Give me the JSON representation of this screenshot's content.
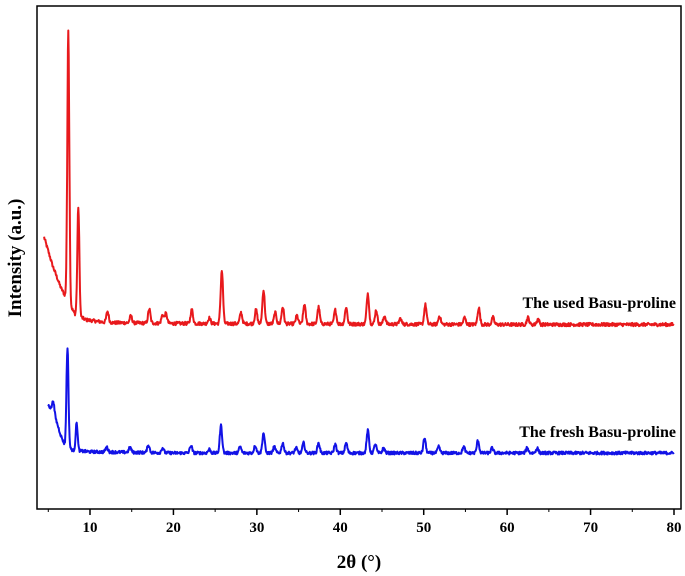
{
  "chart_data": {
    "type": "line",
    "xlabel": "2θ (°)",
    "ylabel": "Intensity (a.u.)",
    "xlim": [
      4,
      80
    ],
    "x_ticks": [
      10,
      20,
      30,
      40,
      50,
      60,
      70,
      80
    ],
    "y_ticks": false,
    "grid": false,
    "legend": "none",
    "series": [
      {
        "name": "The used Basu-proline",
        "color": "#e8191c",
        "baseline": 0.37,
        "background": [
          [
            4.5,
            0.68
          ],
          [
            5.5,
            0.58
          ],
          [
            6.5,
            0.5
          ],
          [
            7.2,
            0.46
          ],
          [
            8.2,
            0.405
          ],
          [
            9.5,
            0.385
          ],
          [
            12,
            0.375
          ],
          [
            20,
            0.372
          ],
          [
            40,
            0.37
          ],
          [
            60,
            0.368
          ],
          [
            80,
            0.368
          ]
        ],
        "peaks": [
          [
            7.4,
            0.97
          ],
          [
            8.6,
            0.39
          ],
          [
            12.1,
            0.04
          ],
          [
            14.9,
            0.025
          ],
          [
            17.1,
            0.05
          ],
          [
            18.7,
            0.03
          ],
          [
            19.1,
            0.035
          ],
          [
            22.2,
            0.05
          ],
          [
            24.3,
            0.02
          ],
          [
            25.8,
            0.19
          ],
          [
            28.1,
            0.04
          ],
          [
            29.9,
            0.05
          ],
          [
            30.8,
            0.12
          ],
          [
            32.2,
            0.04
          ],
          [
            33.1,
            0.06
          ],
          [
            34.8,
            0.03
          ],
          [
            35.7,
            0.07
          ],
          [
            37.4,
            0.06
          ],
          [
            39.4,
            0.05
          ],
          [
            40.7,
            0.06
          ],
          [
            43.3,
            0.11
          ],
          [
            44.3,
            0.05
          ],
          [
            45.3,
            0.03
          ],
          [
            47.2,
            0.02
          ],
          [
            50.2,
            0.07
          ],
          [
            51.9,
            0.03
          ],
          [
            54.9,
            0.025
          ],
          [
            56.6,
            0.06
          ],
          [
            58.3,
            0.025
          ],
          [
            62.5,
            0.025
          ],
          [
            63.7,
            0.02
          ]
        ]
      },
      {
        "name": "The fresh Basu-proline",
        "color": "#1212e6",
        "baseline": 0.0,
        "background": [
          [
            5.0,
            0.19
          ],
          [
            5.6,
            0.17
          ],
          [
            6.5,
            0.07
          ],
          [
            7.0,
            0.03
          ],
          [
            8.0,
            0.01
          ],
          [
            10,
            0.005
          ],
          [
            20,
            0.0
          ],
          [
            80,
            0.0
          ]
        ],
        "peaks": [
          [
            5.6,
            0.04
          ],
          [
            7.3,
            0.4
          ],
          [
            8.4,
            0.11
          ],
          [
            12.0,
            0.02
          ],
          [
            14.8,
            0.02
          ],
          [
            17.0,
            0.03
          ],
          [
            18.7,
            0.02
          ],
          [
            22.1,
            0.03
          ],
          [
            24.3,
            0.015
          ],
          [
            25.7,
            0.11
          ],
          [
            28.0,
            0.025
          ],
          [
            29.8,
            0.03
          ],
          [
            30.8,
            0.08
          ],
          [
            32.1,
            0.025
          ],
          [
            33.1,
            0.04
          ],
          [
            34.7,
            0.02
          ],
          [
            35.6,
            0.04
          ],
          [
            37.4,
            0.04
          ],
          [
            39.4,
            0.035
          ],
          [
            40.7,
            0.04
          ],
          [
            43.3,
            0.09
          ],
          [
            44.2,
            0.035
          ],
          [
            45.2,
            0.02
          ],
          [
            50.1,
            0.06
          ],
          [
            51.8,
            0.025
          ],
          [
            54.8,
            0.025
          ],
          [
            56.5,
            0.05
          ],
          [
            58.2,
            0.02
          ],
          [
            62.4,
            0.02
          ],
          [
            63.6,
            0.02
          ]
        ]
      }
    ]
  }
}
